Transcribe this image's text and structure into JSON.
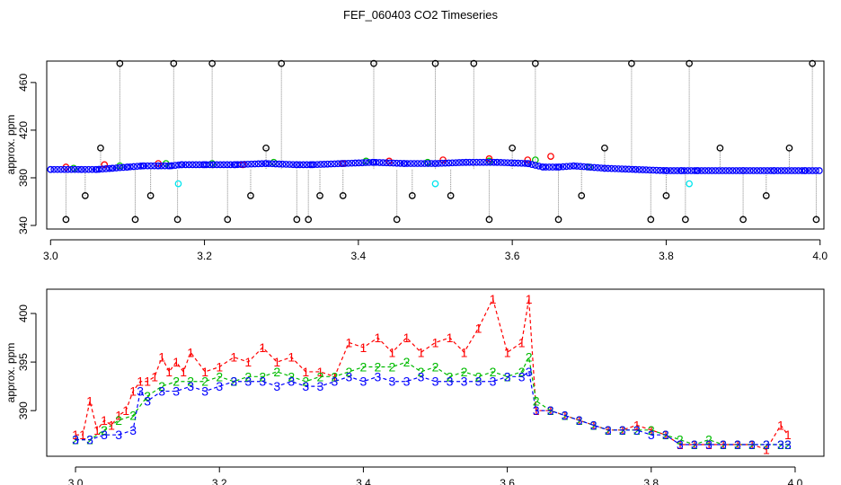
{
  "figure": {
    "title": "FEF_060403  CO2 Timeseries"
  },
  "chart_data": [
    {
      "type": "scatter",
      "title": "",
      "xlabel": "",
      "ylabel": "approx. ppm",
      "xlim": [
        2.995,
        4.005
      ],
      "ylim": [
        337,
        478
      ],
      "xticks": [
        3.0,
        3.2,
        3.4,
        3.6,
        3.8,
        4.0
      ],
      "xtick_labels": [
        "3.0",
        "3.2",
        "3.4",
        "3.6",
        "3.8",
        "4.0"
      ],
      "yticks": [
        340,
        380,
        420,
        460
      ],
      "ytick_labels": [
        "340",
        "380",
        "420",
        "460"
      ],
      "grid": false,
      "legend": "none",
      "colors": {
        "series1": "#ff0000",
        "series2": "#00bb00",
        "series3": "#0000ff",
        "series0": "#000000",
        "flagged": "#00e5ee",
        "droplines": "#888888"
      },
      "series": [
        {
          "color": "#0000ff",
          "marker": "o",
          "x": [
            3.0,
            3.04,
            3.06,
            3.08,
            3.1,
            3.12,
            3.14,
            3.155,
            3.17,
            3.2,
            3.24,
            3.28,
            3.32,
            3.34,
            3.38,
            3.42,
            3.46,
            3.5,
            3.54,
            3.58,
            3.62,
            3.64,
            3.66,
            3.68,
            3.72,
            3.76,
            3.8,
            3.82,
            3.84,
            3.9,
            3.94,
            3.98
          ],
          "y": [
            387,
            387,
            387,
            388,
            389,
            390,
            390,
            390,
            391,
            391,
            391,
            392,
            391,
            391,
            392,
            393,
            392,
            392,
            393,
            393,
            392,
            389,
            389,
            390,
            388,
            387,
            386,
            386,
            386,
            386,
            386,
            386
          ]
        },
        {
          "color": "#00bb00",
          "marker": "o",
          "x": [
            3.03,
            3.09,
            3.15,
            3.21,
            3.29,
            3.41,
            3.49,
            3.57,
            3.63,
            3.7
          ],
          "y": [
            388,
            390,
            392,
            392,
            393,
            394,
            393,
            394,
            395,
            389
          ]
        },
        {
          "color": "#ff0000",
          "marker": "o",
          "x": [
            3.02,
            3.07,
            3.14,
            3.25,
            3.38,
            3.44,
            3.51,
            3.57,
            3.62,
            3.65
          ],
          "y": [
            389,
            391,
            392,
            391,
            392,
            394,
            395,
            396,
            395,
            398
          ]
        },
        {
          "color": "#000000",
          "marker": "o",
          "x": [
            3.02,
            3.045,
            3.065,
            3.09,
            3.11,
            3.13,
            3.16,
            3.165,
            3.21,
            3.23,
            3.26,
            3.28,
            3.3,
            3.32,
            3.335,
            3.35,
            3.38,
            3.42,
            3.45,
            3.47,
            3.5,
            3.52,
            3.55,
            3.57,
            3.6,
            3.63,
            3.66,
            3.69,
            3.72,
            3.755,
            3.78,
            3.8,
            3.825,
            3.83,
            3.87,
            3.9,
            3.93,
            3.96,
            3.99,
            3.995
          ],
          "y": [
            345,
            365,
            405,
            476,
            345,
            365,
            476,
            345,
            476,
            345,
            365,
            405,
            476,
            345,
            345,
            365,
            365,
            476,
            345,
            365,
            476,
            365,
            476,
            345,
            405,
            476,
            345,
            365,
            405,
            476,
            345,
            365,
            345,
            476,
            405,
            345,
            365,
            405,
            476,
            345
          ]
        },
        {
          "color": "#00e5ee",
          "marker": "o",
          "x": [
            3.166,
            3.5,
            3.83
          ],
          "y": [
            375,
            375,
            375
          ]
        }
      ]
    },
    {
      "type": "line",
      "title": "",
      "xlabel": "",
      "ylabel": "approx. ppm",
      "xlim": [
        2.96,
        4.04
      ],
      "ylim": [
        385.3,
        402.5
      ],
      "xticks": [
        3.0,
        3.2,
        3.4,
        3.6,
        3.8,
        4.0
      ],
      "xtick_labels": [
        "3.0",
        "3.2",
        "3.4",
        "3.6",
        "3.8",
        "4.0"
      ],
      "yticks": [
        390,
        395,
        400
      ],
      "ytick_labels": [
        "390",
        "395",
        "400"
      ],
      "grid": false,
      "legend": "none",
      "series": [
        {
          "marker": "1",
          "color": "#ff0000",
          "x": [
            3.0,
            3.01,
            3.02,
            3.03,
            3.04,
            3.05,
            3.06,
            3.07,
            3.08,
            3.09,
            3.1,
            3.11,
            3.12,
            3.13,
            3.14,
            3.15,
            3.16,
            3.18,
            3.2,
            3.22,
            3.24,
            3.26,
            3.28,
            3.3,
            3.32,
            3.34,
            3.36,
            3.38,
            3.4,
            3.42,
            3.44,
            3.46,
            3.48,
            3.5,
            3.52,
            3.54,
            3.56,
            3.58,
            3.6,
            3.62,
            3.63,
            3.64,
            3.66,
            3.68,
            3.7,
            3.72,
            3.74,
            3.76,
            3.78,
            3.8,
            3.82,
            3.84,
            3.86,
            3.88,
            3.9,
            3.92,
            3.94,
            3.96,
            3.98,
            3.99
          ],
          "y": [
            387.5,
            387.5,
            391.0,
            388.0,
            389.0,
            388.5,
            389.5,
            390.0,
            392.0,
            393.0,
            393.0,
            393.5,
            395.5,
            394.0,
            395.0,
            394.0,
            396.0,
            394.0,
            394.5,
            395.5,
            395.0,
            396.5,
            395.0,
            395.5,
            394.0,
            394.0,
            393.5,
            397.0,
            396.5,
            397.5,
            396.0,
            397.5,
            396.0,
            397.0,
            397.5,
            396.0,
            398.5,
            401.5,
            396.0,
            397.0,
            401.5,
            390.0,
            390.0,
            389.5,
            389.0,
            388.5,
            388.0,
            388.0,
            388.5,
            388.0,
            387.5,
            386.5,
            386.5,
            386.5,
            386.5,
            386.5,
            386.5,
            386.0,
            388.5,
            387.5
          ]
        },
        {
          "marker": "2",
          "color": "#00bb00",
          "x": [
            3.0,
            3.02,
            3.04,
            3.06,
            3.08,
            3.1,
            3.12,
            3.14,
            3.16,
            3.18,
            3.2,
            3.22,
            3.24,
            3.26,
            3.28,
            3.3,
            3.32,
            3.34,
            3.36,
            3.38,
            3.4,
            3.42,
            3.44,
            3.46,
            3.48,
            3.5,
            3.52,
            3.54,
            3.56,
            3.58,
            3.6,
            3.62,
            3.63,
            3.64,
            3.66,
            3.68,
            3.7,
            3.72,
            3.74,
            3.76,
            3.78,
            3.8,
            3.82,
            3.84,
            3.86,
            3.88,
            3.9,
            3.92,
            3.94,
            3.96,
            3.98,
            3.99
          ],
          "y": [
            387.0,
            387.0,
            388.0,
            389.0,
            389.5,
            391.5,
            392.5,
            393.0,
            393.0,
            393.0,
            393.5,
            393.0,
            393.5,
            393.5,
            394.0,
            393.5,
            393.0,
            393.5,
            393.5,
            394.0,
            394.5,
            394.5,
            394.5,
            395.0,
            394.0,
            394.5,
            393.5,
            394.0,
            393.5,
            394.0,
            393.5,
            394.0,
            395.5,
            391.0,
            390.0,
            389.5,
            389.0,
            388.5,
            388.0,
            388.0,
            388.0,
            388.0,
            387.5,
            387.0,
            386.5,
            387.0,
            386.5,
            386.5,
            386.5,
            386.5,
            386.5,
            386.5
          ]
        },
        {
          "marker": "3",
          "color": "#0000ff",
          "x": [
            3.0,
            3.02,
            3.04,
            3.06,
            3.08,
            3.09,
            3.1,
            3.12,
            3.14,
            3.16,
            3.18,
            3.2,
            3.22,
            3.24,
            3.26,
            3.28,
            3.3,
            3.32,
            3.34,
            3.36,
            3.38,
            3.4,
            3.42,
            3.44,
            3.46,
            3.48,
            3.5,
            3.52,
            3.54,
            3.56,
            3.58,
            3.6,
            3.62,
            3.63,
            3.64,
            3.66,
            3.68,
            3.7,
            3.72,
            3.74,
            3.76,
            3.78,
            3.8,
            3.82,
            3.84,
            3.86,
            3.88,
            3.9,
            3.92,
            3.94,
            3.96,
            3.98,
            3.99
          ],
          "y": [
            387.0,
            387.0,
            387.5,
            387.5,
            388.0,
            392.0,
            391.0,
            392.0,
            392.0,
            392.5,
            392.0,
            392.5,
            393.0,
            393.0,
            393.0,
            392.5,
            393.0,
            392.5,
            392.5,
            393.0,
            393.5,
            393.0,
            393.5,
            393.0,
            393.0,
            393.5,
            393.0,
            393.0,
            393.0,
            393.0,
            393.0,
            393.5,
            393.5,
            394.0,
            390.0,
            390.0,
            389.5,
            389.0,
            388.5,
            388.0,
            388.0,
            388.0,
            387.5,
            387.5,
            386.5,
            386.5,
            386.5,
            386.5,
            386.5,
            386.5,
            386.5,
            386.5,
            386.5
          ]
        }
      ]
    }
  ]
}
